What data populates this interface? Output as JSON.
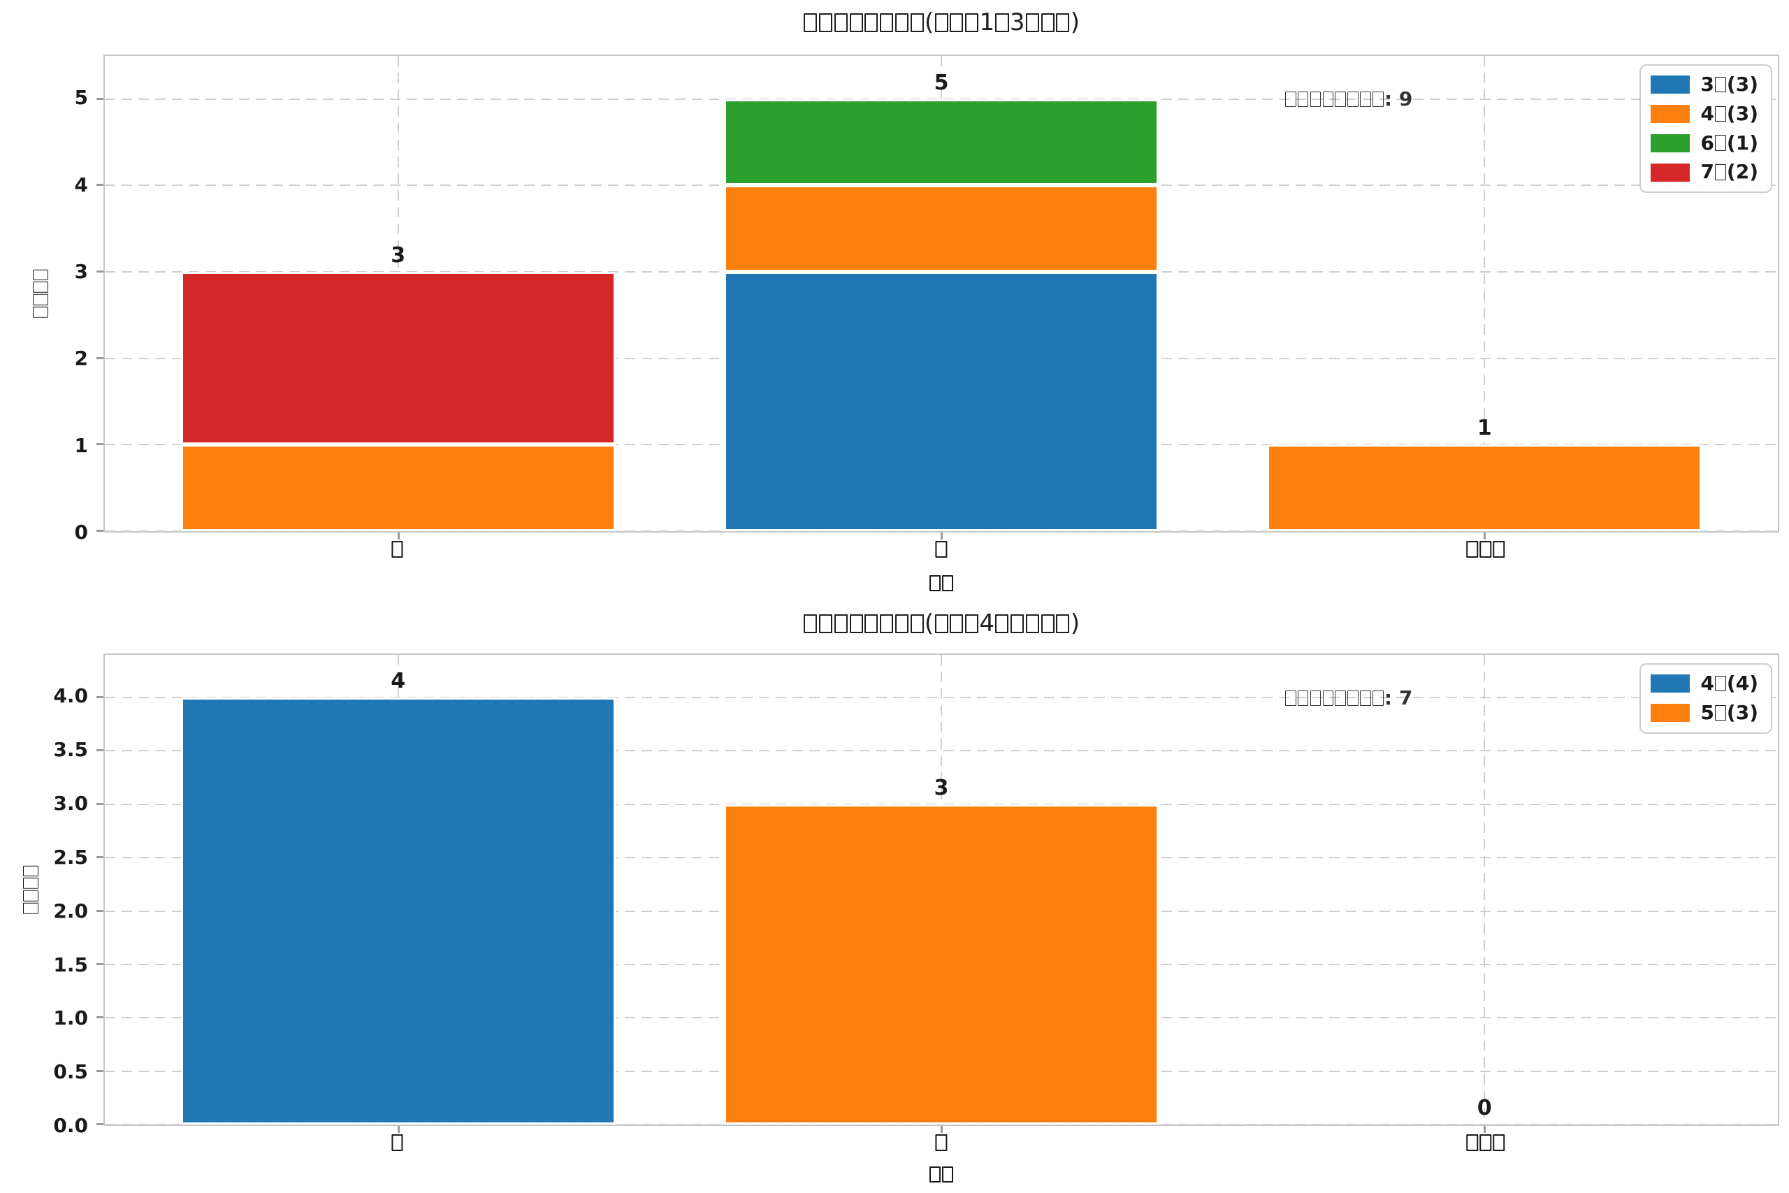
{
  "colors": {
    "blue": "#1f77b4",
    "orange": "#ff7f0e",
    "green": "#2ca02c",
    "red": "#d62728",
    "grid": "#cfcfcf",
    "spine": "#c6c6c6",
    "text": "#1a1a1a"
  },
  "chart_data": [
    {
      "type": "bar",
      "stacked": true,
      "title": "□□□□□□□□(□□□1□3□□□)",
      "xlabel": "□□",
      "ylabel": "□□□□",
      "categories": [
        "□",
        "□",
        "□□□"
      ],
      "series": [
        {
          "name": "3□(3)",
          "color": "#1f77b4",
          "values": [
            0,
            3,
            0
          ]
        },
        {
          "name": "4□(3)",
          "color": "#ff7f0e",
          "values": [
            1,
            1,
            1
          ]
        },
        {
          "name": "6□(1)",
          "color": "#2ca02c",
          "values": [
            0,
            1,
            0
          ]
        },
        {
          "name": "7□(2)",
          "color": "#d62728",
          "values": [
            2,
            0,
            0
          ]
        }
      ],
      "totals": [
        3,
        5,
        1
      ],
      "total_labels": [
        "3",
        "5",
        "1"
      ],
      "annotation": "□□□□□□□□: 9",
      "yticks": [
        0,
        1,
        2,
        3,
        4,
        5
      ],
      "ytick_labels": [
        "0",
        "1",
        "2",
        "3",
        "4",
        "5"
      ],
      "ylim": [
        0,
        5.5
      ],
      "grid": true,
      "legend_position": "upper right"
    },
    {
      "type": "bar",
      "stacked": true,
      "title": "□□□□□□□□(□□□4□□□□□)",
      "xlabel": "□□",
      "ylabel": "□□□□",
      "categories": [
        "□",
        "□",
        "□□□"
      ],
      "series": [
        {
          "name": "4□(4)",
          "color": "#1f77b4",
          "values": [
            4,
            0,
            0
          ]
        },
        {
          "name": "5□(3)",
          "color": "#ff7f0e",
          "values": [
            0,
            3,
            0
          ]
        }
      ],
      "totals": [
        4,
        3,
        0
      ],
      "total_labels": [
        "4",
        "3",
        "0"
      ],
      "annotation": "□□□□□□□□: 7",
      "yticks": [
        0,
        0.5,
        1,
        1.5,
        2,
        2.5,
        3,
        3.5,
        4
      ],
      "ytick_labels": [
        "0.0",
        "0.5",
        "1.0",
        "1.5",
        "2.0",
        "2.5",
        "3.0",
        "3.5",
        "4.0"
      ],
      "ylim": [
        0,
        4.4
      ],
      "grid": true,
      "legend_position": "upper right"
    }
  ]
}
